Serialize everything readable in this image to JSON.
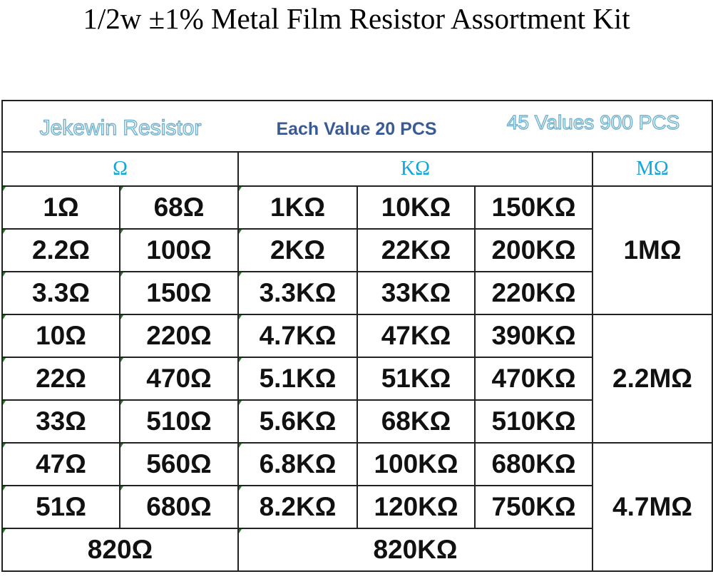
{
  "title": "1/2w ±1% Metal Film Resistor Assortment Kit",
  "header": {
    "brand": "Jekewin Resistor",
    "each": "Each Value 20 PCS",
    "total": "45 Values 900 PCS"
  },
  "units": [
    "Ω",
    "KΩ",
    "MΩ"
  ],
  "rows": [
    [
      "1Ω",
      "68Ω",
      "1KΩ",
      "10KΩ",
      "150KΩ"
    ],
    [
      "2.2Ω",
      "100Ω",
      "2KΩ",
      "22KΩ",
      "200KΩ"
    ],
    [
      "3.3Ω",
      "150Ω",
      "3.3KΩ",
      "33KΩ",
      "220KΩ"
    ],
    [
      "10Ω",
      "220Ω",
      "4.7KΩ",
      "47KΩ",
      "390KΩ"
    ],
    [
      "22Ω",
      "470Ω",
      "5.1KΩ",
      "51KΩ",
      "470KΩ"
    ],
    [
      "33Ω",
      "510Ω",
      "5.6KΩ",
      "68KΩ",
      "510KΩ"
    ],
    [
      "47Ω",
      "560Ω",
      "6.8KΩ",
      "100KΩ",
      "680KΩ"
    ],
    [
      "51Ω",
      "680Ω",
      "8.2KΩ",
      "120KΩ",
      "750KΩ"
    ]
  ],
  "mega": [
    "1MΩ",
    "2.2MΩ",
    "4.7MΩ"
  ],
  "last": [
    "820Ω",
    "820KΩ"
  ]
}
